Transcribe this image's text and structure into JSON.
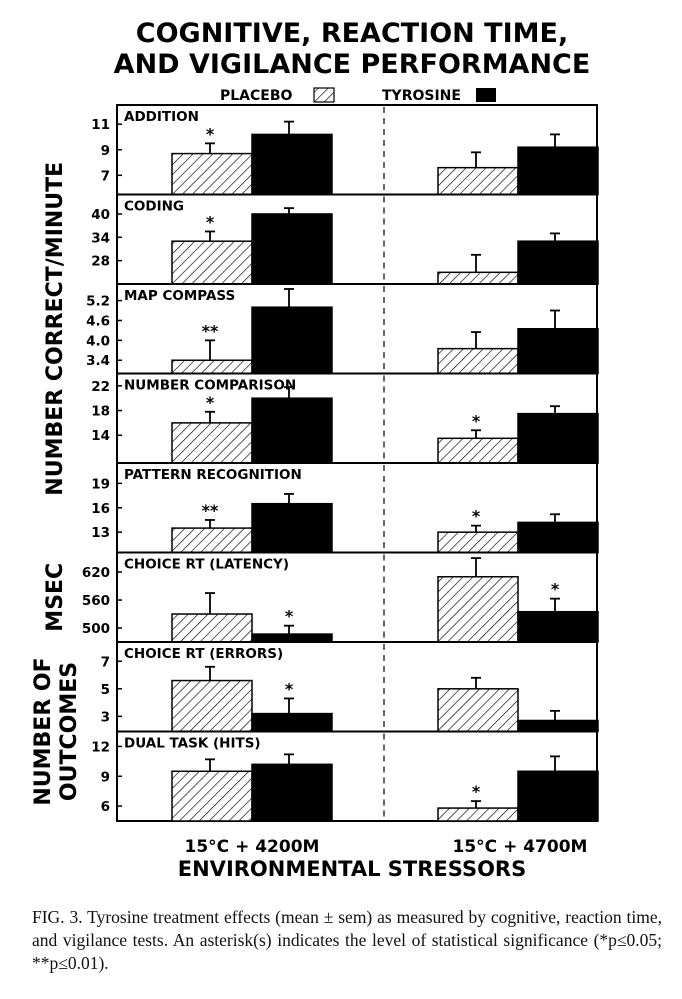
{
  "figure": {
    "title_line1": "COGNITIVE, REACTION TIME,",
    "title_line2": "AND VIGILANCE PERFORMANCE",
    "caption": "FIG. 3. Tyrosine treatment effects (mean ± sem) as measured by cognitive, reaction time, and vigilance tests. An asterisk(s) indicates the level of statistical significance (*p≤0.05; **p≤0.01)."
  },
  "chart_data": {
    "type": "bar",
    "legend": [
      {
        "label": "PLACEBO",
        "pattern": "hatched"
      },
      {
        "label": "TYROSINE",
        "pattern": "solid"
      }
    ],
    "groups": [
      "15°C + 4200M",
      "15°C + 4700M"
    ],
    "xlabel": "ENVIRONMENTAL STRESSORS",
    "y_group_labels": [
      {
        "text": "NUMBER CORRECT/MINUTE",
        "panels": [
          0,
          4
        ]
      },
      {
        "text": "MSEC",
        "panels": [
          5,
          5
        ]
      },
      {
        "text": "NUMBER OF OUTCOMES",
        "panels": [
          6,
          7
        ]
      }
    ],
    "colors": {
      "tyrosine": "#000000",
      "placebo_hatch": "#000000",
      "background": "#ffffff"
    },
    "panels": [
      {
        "name": "ADDITION",
        "ylim": [
          5.5,
          12.5
        ],
        "ticks": [
          "11",
          "9",
          "7"
        ],
        "tick_values": [
          11,
          9,
          7
        ],
        "placebo": [
          8.7,
          7.6
        ],
        "tyrosine": [
          10.2,
          9.2
        ],
        "placebo_err": [
          0.8,
          1.2
        ],
        "tyrosine_err": [
          1.0,
          1.0
        ],
        "stars": [
          "*",
          "",
          "",
          ""
        ]
      },
      {
        "name": "CODING",
        "ylim": [
          22,
          45
        ],
        "ticks": [
          "40",
          "34",
          "28"
        ],
        "tick_values": [
          40,
          34,
          28
        ],
        "placebo": [
          33,
          25
        ],
        "tyrosine": [
          40,
          33
        ],
        "placebo_err": [
          2.5,
          4.5
        ],
        "tyrosine_err": [
          1.5,
          2.0
        ],
        "stars": [
          "*",
          "",
          "",
          ""
        ]
      },
      {
        "name": "MAP COMPASS",
        "ylim": [
          3.0,
          5.7
        ],
        "ticks": [
          "5.2",
          "4.6",
          "4.0",
          "3.4"
        ],
        "tick_values": [
          5.2,
          4.6,
          4.0,
          3.4
        ],
        "placebo": [
          3.4,
          3.75
        ],
        "tyrosine": [
          5.0,
          4.35
        ],
        "placebo_err": [
          0.6,
          0.5
        ],
        "tyrosine_err": [
          0.55,
          0.55
        ],
        "stars": [
          "**",
          "",
          "",
          ""
        ]
      },
      {
        "name": "NUMBER COMPARISON",
        "ylim": [
          9.5,
          24
        ],
        "ticks": [
          "22",
          "18",
          "14"
        ],
        "tick_values": [
          22,
          18,
          14
        ],
        "placebo": [
          16.0,
          13.5
        ],
        "tyrosine": [
          20.0,
          17.5
        ],
        "placebo_err": [
          1.8,
          1.3
        ],
        "tyrosine_err": [
          1.8,
          1.2
        ],
        "stars": [
          "*",
          "",
          "*",
          ""
        ]
      },
      {
        "name": "PATTERN RECOGNITION",
        "ylim": [
          10.5,
          21.5
        ],
        "ticks": [
          "19",
          "16",
          "13"
        ],
        "tick_values": [
          19,
          16,
          13
        ],
        "placebo": [
          13.5,
          13.0
        ],
        "tyrosine": [
          16.5,
          14.2
        ],
        "placebo_err": [
          1.0,
          0.8
        ],
        "tyrosine_err": [
          1.2,
          1.0
        ],
        "stars": [
          "**",
          "",
          "*",
          ""
        ]
      },
      {
        "name": "CHOICE RT (LATENCY)",
        "ylim": [
          470,
          662
        ],
        "ticks": [
          "620",
          "560",
          "500"
        ],
        "tick_values": [
          620,
          560,
          500
        ],
        "placebo": [
          530,
          610
        ],
        "tyrosine": [
          487,
          535
        ],
        "placebo_err": [
          45,
          40
        ],
        "tyrosine_err": [
          18,
          28
        ],
        "stars": [
          "",
          "*",
          "",
          "*"
        ]
      },
      {
        "name": "CHOICE RT (ERRORS)",
        "ylim": [
          1.9,
          8.4
        ],
        "ticks": [
          "7",
          "5",
          "3"
        ],
        "tick_values": [
          7,
          5,
          3
        ],
        "placebo": [
          5.6,
          5.0
        ],
        "tyrosine": [
          3.2,
          2.7
        ],
        "placebo_err": [
          1.0,
          0.8
        ],
        "tyrosine_err": [
          1.1,
          0.7
        ],
        "stars": [
          "",
          "*",
          "",
          ""
        ]
      },
      {
        "name": "DUAL TASK (HITS)",
        "ylim": [
          4.5,
          13.5
        ],
        "ticks": [
          "12",
          "9",
          "6"
        ],
        "tick_values": [
          12,
          9,
          6
        ],
        "placebo": [
          9.5,
          5.8
        ],
        "tyrosine": [
          10.2,
          9.5
        ],
        "placebo_err": [
          1.2,
          0.7
        ],
        "tyrosine_err": [
          1.0,
          1.5
        ],
        "stars": [
          "",
          "",
          "*",
          ""
        ]
      }
    ]
  }
}
